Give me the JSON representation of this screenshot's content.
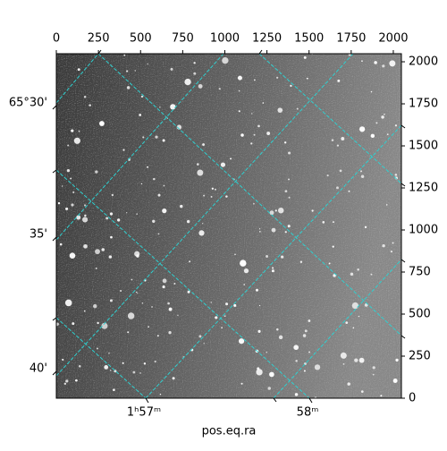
{
  "chart_data": {
    "type": "image",
    "xlabel": "pos.eq.ra",
    "xlim": [
      0,
      2048
    ],
    "xticks": [
      0,
      250,
      500,
      750,
      1000,
      1250,
      1500,
      1750,
      2000
    ],
    "y2lim": [
      0,
      2048
    ],
    "y2ticks": [
      0,
      250,
      500,
      750,
      1000,
      1250,
      1500,
      1750,
      2000
    ],
    "world_xticks": [
      "1ʰ57ᵐ",
      "58ᵐ"
    ],
    "world_yticks": [
      "65°30'",
      "35'",
      "40'"
    ],
    "grid_color": "#2fd0d0"
  }
}
